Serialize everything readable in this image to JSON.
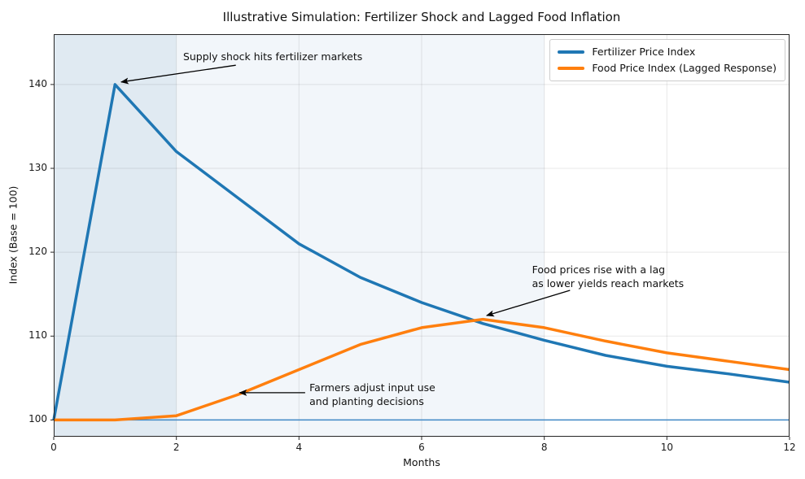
{
  "chart_data": {
    "type": "line",
    "title": "Illustrative Simulation: Fertilizer Shock and Lagged Food Inflation",
    "xlabel": "Months",
    "ylabel": "Index (Base = 100)",
    "xlim": [
      0,
      12
    ],
    "ylim": [
      98,
      146
    ],
    "x_ticks": [
      0,
      2,
      4,
      6,
      8,
      10,
      12
    ],
    "y_ticks": [
      100,
      110,
      120,
      130,
      140
    ],
    "grid": true,
    "legend_position": "upper right",
    "x": [
      0,
      1,
      2,
      3,
      4,
      5,
      6,
      7,
      8,
      9,
      10,
      11,
      12
    ],
    "series": [
      {
        "name": "Fertilizer Price Index",
        "color": "#1f77b4",
        "values": [
          100,
          140,
          132,
          126.5,
          121,
          117,
          114,
          111.5,
          109.5,
          107.7,
          106.4,
          105.5,
          104.5
        ]
      },
      {
        "name": "Food Price Index (Lagged Response)",
        "color": "#ff7f0e",
        "values": [
          100,
          100,
          100.5,
          103,
          106,
          109,
          111,
          112,
          111,
          109.4,
          108,
          107,
          106
        ]
      }
    ],
    "baseline": {
      "y": 100,
      "color": "#3f88c5"
    },
    "shaded_spans": [
      {
        "x0": 0,
        "x1": 8,
        "color": "rgba(70,130,180,0.07)"
      },
      {
        "x0": 0,
        "x1": 2,
        "color": "rgba(70,130,180,0.10)"
      }
    ],
    "annotations": [
      {
        "text": "Supply shock hits fertilizer markets",
        "text_xy": [
          2.11,
          144.05
        ],
        "arrow_from": [
          2.97,
          142.3
        ],
        "arrow_to": [
          1.1,
          140.3
        ]
      },
      {
        "text": "Food prices rise with a lag\nas lower yields reach markets",
        "text_xy": [
          7.8,
          118.65
        ],
        "arrow_from": [
          8.42,
          115.45
        ],
        "arrow_to": [
          7.06,
          112.45
        ]
      },
      {
        "text": "Farmers adjust input use\nand planting decisions",
        "text_xy": [
          4.17,
          104.6
        ],
        "arrow_from": [
          4.1,
          103.25
        ],
        "arrow_to": [
          3.03,
          103.25
        ]
      }
    ]
  }
}
